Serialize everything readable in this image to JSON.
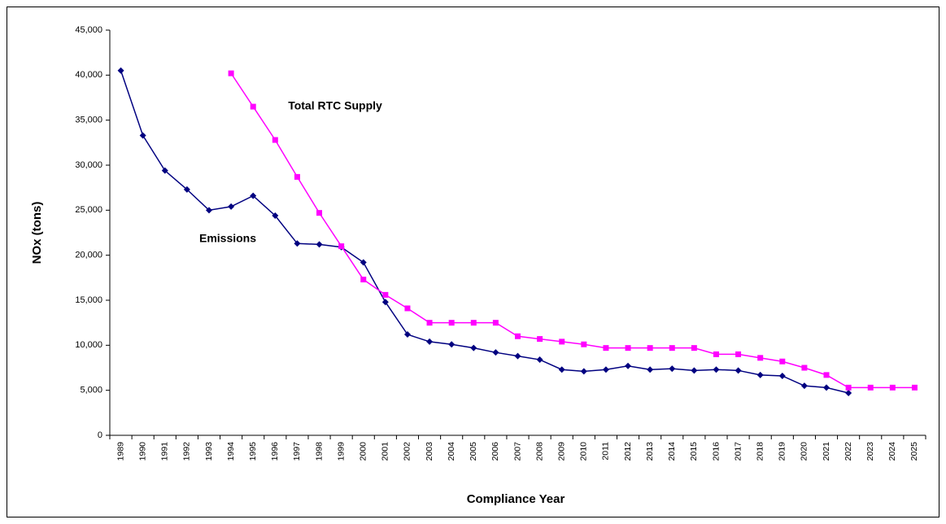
{
  "chart_data": {
    "type": "line",
    "ylabel": "NOx (tons)",
    "xlabel": "Compliance Year",
    "categories": [
      "1989",
      "1990",
      "1991",
      "1992",
      "1993",
      "1994",
      "1995",
      "1996",
      "1997",
      "1998",
      "1999",
      "2000",
      "2001",
      "2002",
      "2003",
      "2004",
      "2005",
      "2006",
      "2007",
      "2008",
      "2009",
      "2010",
      "2011",
      "2012",
      "2013",
      "2014",
      "2015",
      "2016",
      "2017",
      "2018",
      "2019",
      "2020",
      "2021",
      "2022",
      "2023",
      "2024",
      "2025"
    ],
    "series": [
      {
        "name": "Emissions",
        "color": "#000080",
        "marker": "diamond",
        "values": [
          40500,
          33300,
          29400,
          27300,
          25000,
          25400,
          26600,
          24400,
          21300,
          21200,
          20900,
          19200,
          14800,
          11200,
          10400,
          10100,
          9700,
          9200,
          8800,
          8400,
          7300,
          7100,
          7300,
          7700,
          7300,
          7400,
          7200,
          7300,
          7200,
          6700,
          6600,
          5500,
          5300,
          4700,
          null,
          null,
          null
        ]
      },
      {
        "name": "Total RTC Supply",
        "color": "#ff00ff",
        "marker": "square",
        "values": [
          null,
          null,
          null,
          null,
          null,
          40200,
          36500,
          32800,
          28700,
          24700,
          21000,
          17300,
          15600,
          14100,
          12500,
          12500,
          12500,
          12500,
          11000,
          10700,
          10400,
          10100,
          9700,
          9700,
          9700,
          9700,
          9700,
          9000,
          9000,
          8600,
          8200,
          7500,
          6700,
          5300,
          5300,
          5300,
          5300
        ]
      }
    ],
    "ylim": [
      0,
      45000
    ],
    "yticks": [
      0,
      {
        "value": 5000,
        "label": "5,000"
      },
      {
        "value": 10000,
        "label": "10,000"
      },
      {
        "value": 15000,
        "label": "15,000"
      },
      {
        "value": 20000,
        "label": "20,000"
      },
      {
        "value": 25000,
        "label": "25,000"
      },
      {
        "value": 30000,
        "label": "30,000"
      },
      {
        "value": 35000,
        "label": "35,000"
      },
      {
        "value": 40000,
        "label": "40,000"
      },
      {
        "value": 45000,
        "label": "45,000"
      }
    ],
    "grid": false,
    "legend": "inline"
  }
}
